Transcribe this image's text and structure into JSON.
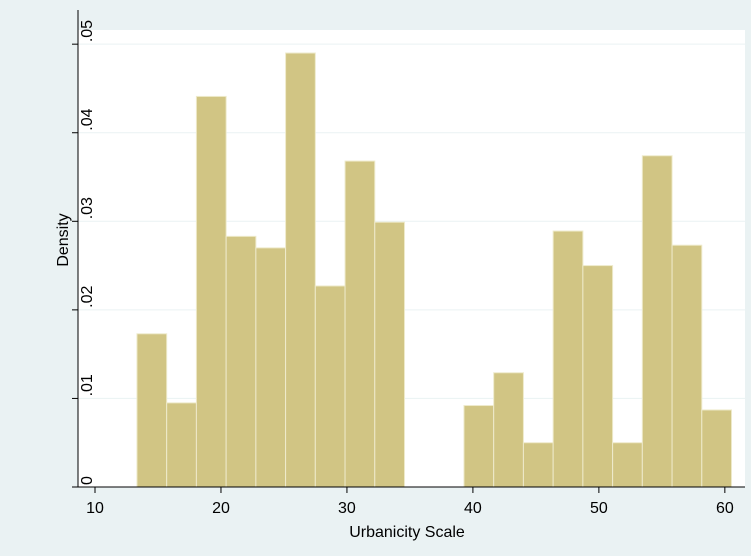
{
  "chart_data": {
    "type": "histogram",
    "x_label": "Urbanicity Scale",
    "y_label": "Density",
    "bins": [
      13.33,
      15.69,
      18.05,
      20.41,
      22.77,
      25.13,
      27.49,
      29.85,
      32.21,
      34.57,
      36.93,
      39.29,
      41.65,
      44.01,
      46.37,
      48.73,
      51.09,
      53.45,
      55.81,
      58.17,
      60.53
    ],
    "values": [
      0.0173,
      0.0095,
      0.0441,
      0.0283,
      0.027,
      0.049,
      0.0227,
      0.0368,
      0.0299,
      0,
      0,
      0.0092,
      0.0129,
      0.005,
      0.0289,
      0.025,
      0.005,
      0.0374,
      0.0273,
      0.0087
    ],
    "color": "#d1c584",
    "xlim": [
      8.65,
      61.6
    ],
    "ylim": [
      0,
      0.0516
    ],
    "xticks": [
      10,
      20,
      30,
      40,
      50,
      60
    ],
    "yticks": [
      {
        "value": 0,
        "label": "0"
      },
      {
        "value": 0.01,
        "label": ".01"
      },
      {
        "value": 0.02,
        "label": ".02"
      },
      {
        "value": 0.03,
        "label": ".03"
      },
      {
        "value": 0.04,
        "label": ".04"
      },
      {
        "value": 0.05,
        "label": ".05"
      }
    ],
    "grid": true
  }
}
